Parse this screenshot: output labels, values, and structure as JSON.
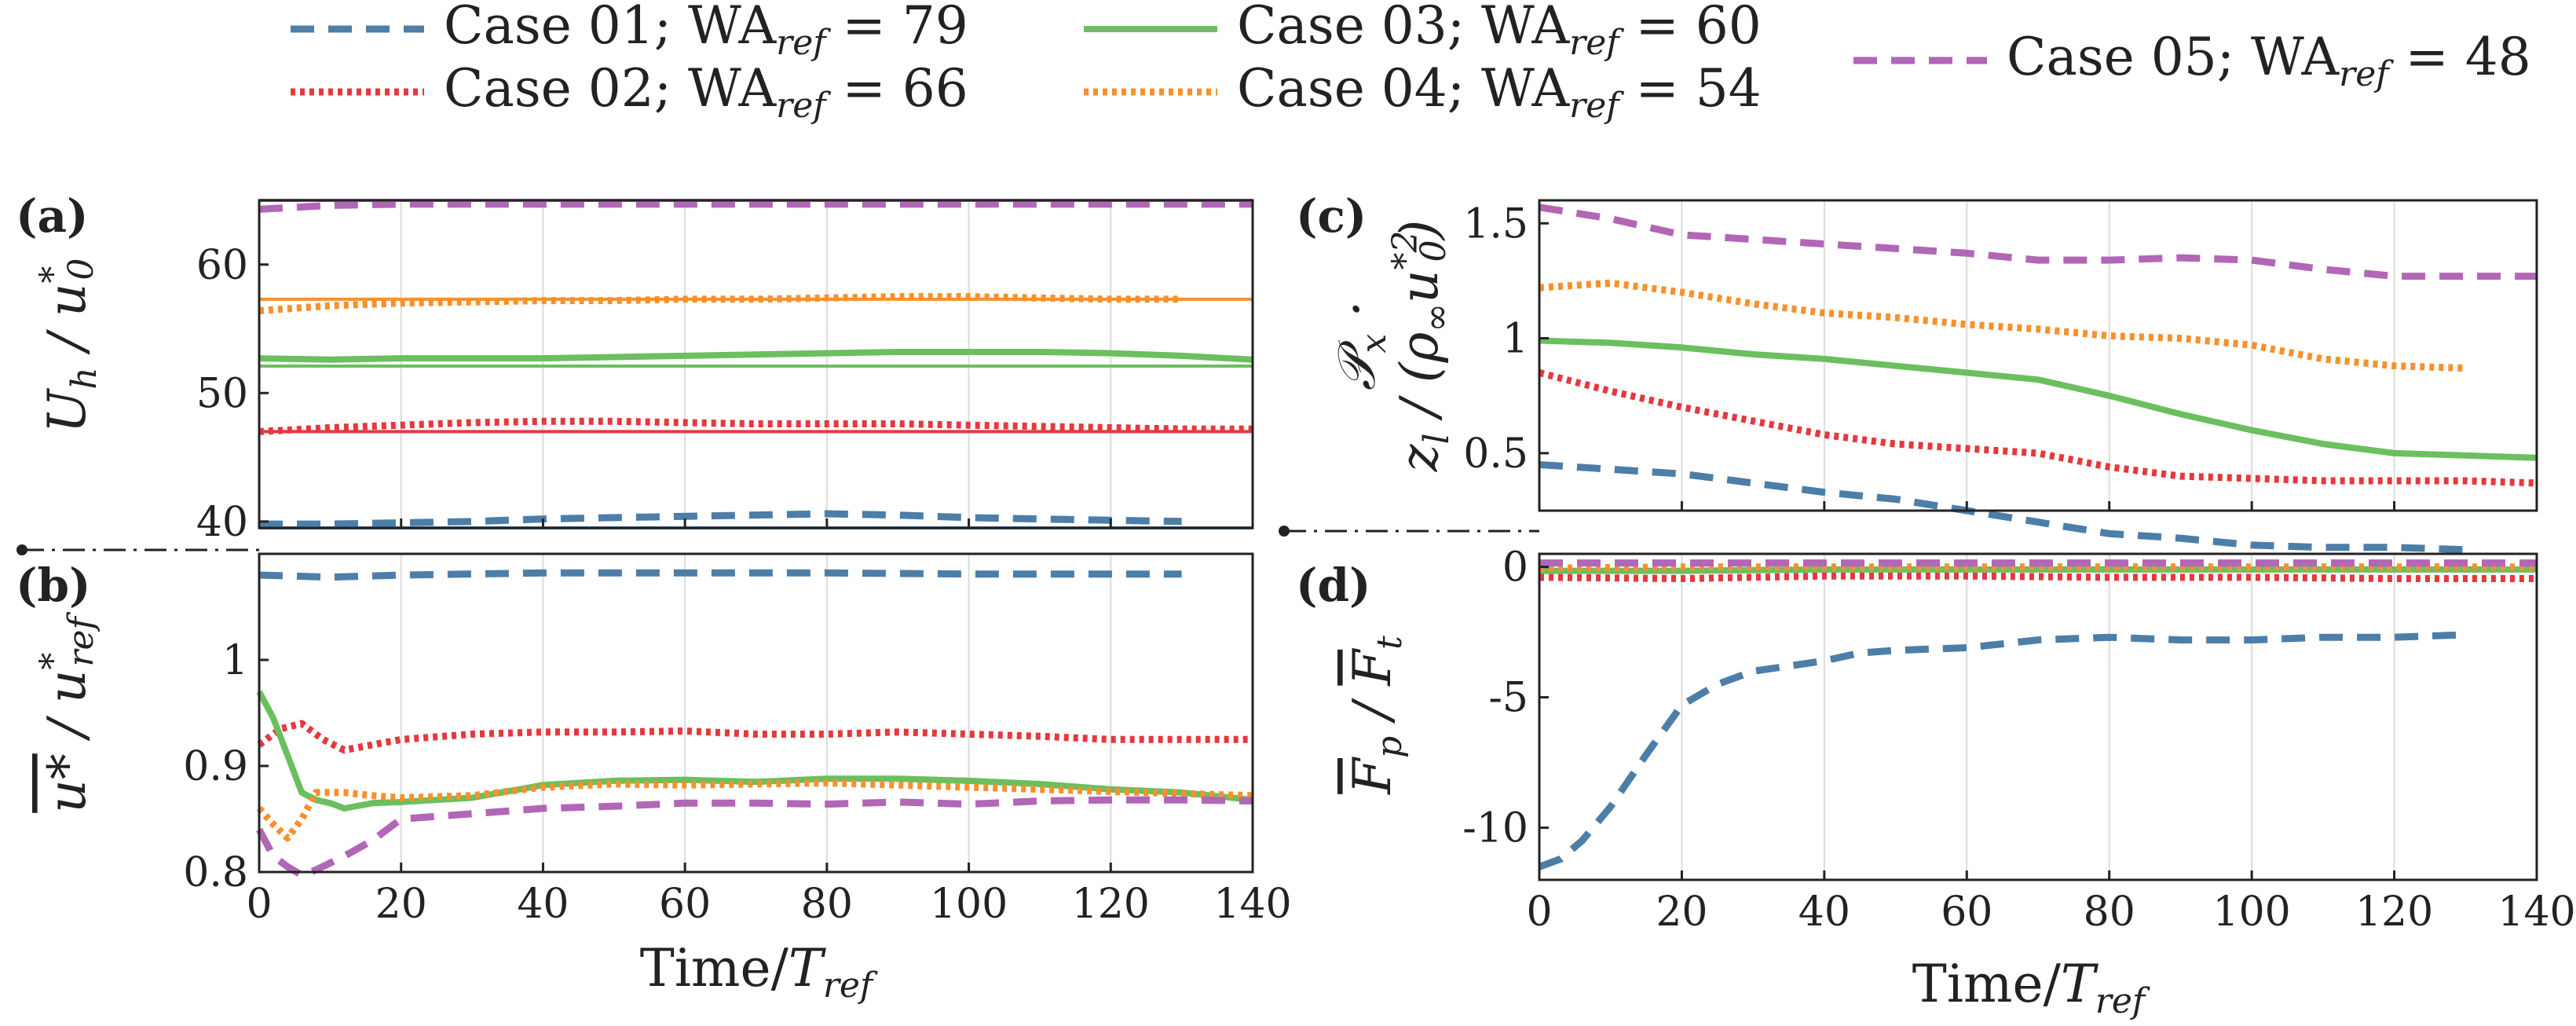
{
  "legend": [
    {
      "case": "Case 01;",
      "wa": "WA",
      "sub": "ref",
      "eq": " = 79",
      "color": "#4C7EA8",
      "style": "dashed"
    },
    {
      "case": "Case 02;",
      "wa": "WA",
      "sub": "ref",
      "eq": " = 66",
      "color": "#E4393E",
      "style": "dotted"
    },
    {
      "case": "Case 03;",
      "wa": "WA",
      "sub": "ref",
      "eq": " = 60",
      "color": "#6BBF5E",
      "style": "solid"
    },
    {
      "case": "Case 04;",
      "wa": "WA",
      "sub": "ref",
      "eq": " = 54",
      "color": "#F6912E",
      "style": "dotted"
    },
    {
      "case": "Case 05;",
      "wa": "WA",
      "sub": "ref",
      "eq": " = 48",
      "color": "#B266B6",
      "style": "dashed"
    }
  ],
  "chart_data": [
    {
      "panel": "(a)",
      "type": "line",
      "ylabel": "U_h / u_0*",
      "xlim": [
        0,
        140
      ],
      "ylim": [
        39.5,
        65
      ],
      "yticks": [
        "40",
        "50",
        "60"
      ],
      "xticks": [],
      "series": [
        {
          "name": "Case 01",
          "style": "dashed",
          "x": [
            0,
            10,
            20,
            30,
            40,
            50,
            60,
            70,
            80,
            90,
            100,
            110,
            120,
            130
          ],
          "y": [
            39.8,
            39.8,
            39.9,
            40.0,
            40.2,
            40.3,
            40.4,
            40.5,
            40.6,
            40.5,
            40.3,
            40.2,
            40.1,
            40.0
          ]
        },
        {
          "name": "Case 01 reference",
          "style": "thin",
          "x": [
            0,
            140
          ],
          "y": [
            39.5,
            39.5
          ]
        },
        {
          "name": "Case 02",
          "style": "dotted",
          "x": [
            0,
            10,
            20,
            30,
            40,
            50,
            60,
            70,
            80,
            90,
            100,
            110,
            120,
            130,
            140
          ],
          "y": [
            47.0,
            47.3,
            47.5,
            47.7,
            47.8,
            47.8,
            47.7,
            47.6,
            47.6,
            47.6,
            47.5,
            47.4,
            47.3,
            47.2,
            47.2
          ]
        },
        {
          "name": "Case 02 reference",
          "style": "thin",
          "x": [
            0,
            140
          ],
          "y": [
            47.0,
            47.0
          ]
        },
        {
          "name": "Case 03",
          "style": "solid",
          "x": [
            0,
            10,
            20,
            30,
            40,
            50,
            60,
            70,
            80,
            90,
            100,
            110,
            120,
            130,
            140
          ],
          "y": [
            52.7,
            52.6,
            52.7,
            52.7,
            52.7,
            52.8,
            52.9,
            53.0,
            53.1,
            53.2,
            53.2,
            53.2,
            53.1,
            52.9,
            52.6
          ]
        },
        {
          "name": "Case 03 reference",
          "style": "thin",
          "x": [
            0,
            140
          ],
          "y": [
            52.1,
            52.1
          ]
        },
        {
          "name": "Case 04",
          "style": "dotted",
          "x": [
            0,
            10,
            20,
            30,
            40,
            50,
            60,
            70,
            80,
            90,
            100,
            110,
            120,
            130
          ],
          "y": [
            56.4,
            56.8,
            57.0,
            57.1,
            57.2,
            57.2,
            57.3,
            57.3,
            57.4,
            57.5,
            57.5,
            57.4,
            57.3,
            57.3
          ]
        },
        {
          "name": "Case 04 reference",
          "style": "thin",
          "x": [
            0,
            140
          ],
          "y": [
            57.3,
            57.3
          ]
        },
        {
          "name": "Case 05",
          "style": "dashed",
          "x": [
            0,
            10,
            20,
            30,
            40,
            50,
            60,
            70,
            80,
            90,
            100,
            110,
            120,
            130,
            140
          ],
          "y": [
            64.3,
            64.6,
            64.7,
            64.7,
            64.7,
            64.7,
            64.7,
            64.7,
            64.7,
            64.7,
            64.7,
            64.7,
            64.7,
            64.7,
            64.7
          ]
        },
        {
          "name": "Case 05 reference",
          "style": "thin",
          "x": [
            0,
            140
          ],
          "y": [
            65.0,
            65.0
          ]
        }
      ]
    },
    {
      "panel": "(b)",
      "type": "line",
      "ylabel": "u* / u*_ref",
      "xlabel": "Time/T_ref",
      "xlim": [
        0,
        140
      ],
      "ylim": [
        0.8,
        1.1
      ],
      "yticks": [
        "0.8",
        "0.9",
        "1"
      ],
      "xticks": [
        "0",
        "20",
        "40",
        "60",
        "80",
        "100",
        "120",
        "140"
      ],
      "series": [
        {
          "name": "Case 01",
          "style": "dashed",
          "x": [
            0,
            10,
            20,
            40,
            60,
            80,
            100,
            120,
            130
          ],
          "y": [
            1.08,
            1.078,
            1.08,
            1.082,
            1.082,
            1.082,
            1.081,
            1.081,
            1.081
          ]
        },
        {
          "name": "Case 02",
          "style": "dotted",
          "x": [
            0,
            3,
            6,
            9,
            12,
            16,
            20,
            30,
            40,
            50,
            60,
            70,
            80,
            90,
            100,
            110,
            120,
            130,
            140
          ],
          "y": [
            0.92,
            0.935,
            0.94,
            0.925,
            0.915,
            0.92,
            0.925,
            0.93,
            0.932,
            0.932,
            0.933,
            0.93,
            0.93,
            0.932,
            0.93,
            0.928,
            0.925,
            0.925,
            0.925
          ]
        },
        {
          "name": "Case 03",
          "style": "solid",
          "x": [
            0,
            2,
            4,
            6,
            8,
            10,
            12,
            16,
            20,
            30,
            40,
            50,
            60,
            70,
            80,
            90,
            100,
            110,
            120,
            130,
            140
          ],
          "y": [
            0.97,
            0.945,
            0.91,
            0.875,
            0.868,
            0.865,
            0.86,
            0.865,
            0.866,
            0.87,
            0.882,
            0.886,
            0.887,
            0.885,
            0.888,
            0.888,
            0.886,
            0.883,
            0.878,
            0.875,
            0.868
          ]
        },
        {
          "name": "Case 04",
          "style": "dotted",
          "x": [
            0,
            2,
            4,
            6,
            8,
            12,
            16,
            20,
            30,
            40,
            50,
            60,
            70,
            80,
            90,
            100,
            110,
            120,
            130,
            140
          ],
          "y": [
            0.86,
            0.845,
            0.832,
            0.85,
            0.875,
            0.875,
            0.872,
            0.87,
            0.872,
            0.88,
            0.883,
            0.882,
            0.883,
            0.884,
            0.882,
            0.88,
            0.878,
            0.876,
            0.874,
            0.872
          ]
        },
        {
          "name": "Case 05",
          "style": "dashed",
          "x": [
            0,
            2,
            4,
            6,
            8,
            12,
            16,
            20,
            30,
            40,
            50,
            60,
            70,
            80,
            90,
            100,
            110,
            120,
            130,
            140
          ],
          "y": [
            0.84,
            0.815,
            0.805,
            0.797,
            0.802,
            0.815,
            0.83,
            0.85,
            0.855,
            0.86,
            0.862,
            0.865,
            0.865,
            0.864,
            0.866,
            0.864,
            0.867,
            0.868,
            0.868,
            0.867
          ]
        }
      ]
    },
    {
      "panel": "(c)",
      "type": "line",
      "ylabel": "P_x · z_l / (ρ∞ u_0*^2)",
      "xlim": [
        0,
        140
      ],
      "ylim": [
        0.25,
        1.6
      ],
      "yticks": [
        "0.5",
        "1",
        "1.5"
      ],
      "xticks": [],
      "series": [
        {
          "name": "Case 01",
          "style": "dashed",
          "x": [
            0,
            10,
            20,
            30,
            40,
            50,
            60,
            70,
            80,
            90,
            100,
            110,
            120,
            130
          ],
          "y": [
            0.45,
            0.43,
            0.41,
            0.37,
            0.33,
            0.3,
            0.25,
            0.2,
            0.15,
            0.13,
            0.1,
            0.09,
            0.09,
            0.08
          ]
        },
        {
          "name": "Case 02",
          "style": "dotted",
          "x": [
            0,
            10,
            20,
            30,
            40,
            50,
            60,
            70,
            80,
            90,
            100,
            110,
            120,
            130,
            140
          ],
          "y": [
            0.85,
            0.77,
            0.7,
            0.64,
            0.58,
            0.54,
            0.52,
            0.5,
            0.44,
            0.4,
            0.39,
            0.38,
            0.38,
            0.38,
            0.37
          ]
        },
        {
          "name": "Case 03",
          "style": "solid",
          "x": [
            0,
            10,
            20,
            30,
            40,
            50,
            60,
            70,
            80,
            90,
            100,
            110,
            120,
            130,
            140
          ],
          "y": [
            0.99,
            0.98,
            0.96,
            0.93,
            0.91,
            0.88,
            0.85,
            0.82,
            0.75,
            0.67,
            0.6,
            0.54,
            0.5,
            0.49,
            0.48
          ]
        },
        {
          "name": "Case 04",
          "style": "dotted",
          "x": [
            0,
            10,
            20,
            30,
            40,
            50,
            60,
            70,
            80,
            90,
            100,
            110,
            120,
            130
          ],
          "y": [
            1.22,
            1.24,
            1.2,
            1.15,
            1.11,
            1.09,
            1.06,
            1.04,
            1.01,
            1.0,
            0.97,
            0.91,
            0.88,
            0.87
          ]
        },
        {
          "name": "Case 05",
          "style": "dashed",
          "x": [
            0,
            10,
            20,
            30,
            40,
            50,
            60,
            70,
            80,
            90,
            100,
            110,
            120,
            130,
            140
          ],
          "y": [
            1.57,
            1.52,
            1.45,
            1.43,
            1.41,
            1.39,
            1.37,
            1.34,
            1.34,
            1.35,
            1.34,
            1.3,
            1.27,
            1.27,
            1.27
          ]
        }
      ]
    },
    {
      "panel": "(d)",
      "type": "line",
      "ylabel": "F_p / F_t",
      "xlabel": "Time/T_ref",
      "xlim": [
        0,
        140
      ],
      "ylim": [
        -12,
        0.5
      ],
      "yticks": [
        "-10",
        "-5",
        "0"
      ],
      "xticks": [
        "0",
        "20",
        "40",
        "60",
        "80",
        "100",
        "120",
        "140"
      ],
      "series": [
        {
          "name": "Case 01",
          "style": "dashed",
          "x": [
            0,
            3,
            6,
            10,
            15,
            20,
            25,
            30,
            35,
            40,
            45,
            50,
            60,
            70,
            80,
            90,
            100,
            110,
            120,
            130
          ],
          "y": [
            -11.5,
            -11.2,
            -10.5,
            -9.2,
            -7.2,
            -5.3,
            -4.5,
            -4.0,
            -3.8,
            -3.6,
            -3.3,
            -3.2,
            -3.1,
            -2.8,
            -2.7,
            -2.8,
            -2.8,
            -2.7,
            -2.7,
            -2.6
          ]
        },
        {
          "name": "Case 02",
          "style": "dotted",
          "x": [
            0,
            20,
            40,
            60,
            80,
            100,
            120,
            140
          ],
          "y": [
            -0.4,
            -0.45,
            -0.35,
            -0.35,
            -0.4,
            -0.4,
            -0.45,
            -0.45
          ]
        },
        {
          "name": "Case 03",
          "style": "solid",
          "x": [
            0,
            20,
            40,
            60,
            80,
            100,
            120,
            140
          ],
          "y": [
            -0.15,
            -0.15,
            -0.1,
            -0.1,
            -0.1,
            -0.1,
            -0.1,
            -0.1
          ]
        },
        {
          "name": "Case 04",
          "style": "dotted",
          "x": [
            0,
            20,
            40,
            60,
            80,
            100,
            120,
            140
          ],
          "y": [
            -0.05,
            0.0,
            0.0,
            0.0,
            0.0,
            0.0,
            0.0,
            0.0
          ]
        },
        {
          "name": "Case 05",
          "style": "dashed",
          "x": [
            0,
            20,
            40,
            60,
            80,
            100,
            120,
            140
          ],
          "y": [
            0.15,
            0.15,
            0.15,
            0.15,
            0.15,
            0.15,
            0.15,
            0.15
          ]
        }
      ]
    }
  ]
}
